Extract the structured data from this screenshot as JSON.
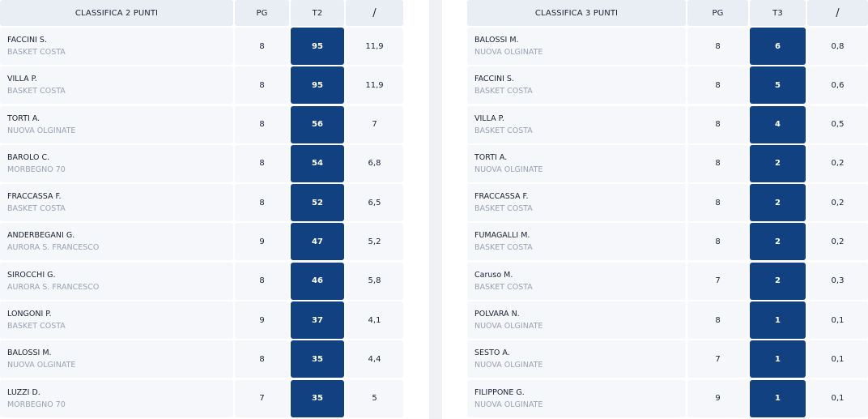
{
  "left": {
    "headers": {
      "title": "CLASSIFICA 2 PUNTI",
      "pg": "PG",
      "stat": "T2",
      "avg": "/"
    },
    "rows": [
      {
        "name": "FACCINI S.",
        "team": "BASKET COSTA",
        "pg": "8",
        "stat": "95",
        "avg": "11,9"
      },
      {
        "name": "VILLA P.",
        "team": "BASKET COSTA",
        "pg": "8",
        "stat": "95",
        "avg": "11,9"
      },
      {
        "name": "TORTI A.",
        "team": "NUOVA OLGINATE",
        "pg": "8",
        "stat": "56",
        "avg": "7"
      },
      {
        "name": "BAROLO C.",
        "team": "MORBEGNO 70",
        "pg": "8",
        "stat": "54",
        "avg": "6,8"
      },
      {
        "name": "FRACCASSA F.",
        "team": "BASKET COSTA",
        "pg": "8",
        "stat": "52",
        "avg": "6,5"
      },
      {
        "name": "ANDERBEGANI G.",
        "team": "AURORA S. FRANCESCO",
        "pg": "9",
        "stat": "47",
        "avg": "5,2"
      },
      {
        "name": "SIROCCHI G.",
        "team": "AURORA S. FRANCESCO",
        "pg": "8",
        "stat": "46",
        "avg": "5,8"
      },
      {
        "name": "LONGONI P.",
        "team": "BASKET COSTA",
        "pg": "9",
        "stat": "37",
        "avg": "4,1"
      },
      {
        "name": "BALOSSI M.",
        "team": "NUOVA OLGINATE",
        "pg": "8",
        "stat": "35",
        "avg": "4,4"
      },
      {
        "name": "LUZZI D.",
        "team": "MORBEGNO 70",
        "pg": "7",
        "stat": "35",
        "avg": "5"
      }
    ]
  },
  "right": {
    "headers": {
      "title": "CLASSIFICA 3 PUNTI",
      "pg": "PG",
      "stat": "T3",
      "avg": "/"
    },
    "rows": [
      {
        "name": "BALOSSI M.",
        "team": "NUOVA OLGINATE",
        "pg": "8",
        "stat": "6",
        "avg": "0,8"
      },
      {
        "name": "FACCINI S.",
        "team": "BASKET COSTA",
        "pg": "8",
        "stat": "5",
        "avg": "0,6"
      },
      {
        "name": "VILLA P.",
        "team": "BASKET COSTA",
        "pg": "8",
        "stat": "4",
        "avg": "0,5"
      },
      {
        "name": "TORTI A.",
        "team": "NUOVA OLGINATE",
        "pg": "8",
        "stat": "2",
        "avg": "0,2"
      },
      {
        "name": "FRACCASSA F.",
        "team": "BASKET COSTA",
        "pg": "8",
        "stat": "2",
        "avg": "0,2"
      },
      {
        "name": "FUMAGALLI M.",
        "team": "BASKET COSTA",
        "pg": "8",
        "stat": "2",
        "avg": "0,2"
      },
      {
        "name": "Caruso M.",
        "team": "BASKET COSTA",
        "pg": "7",
        "stat": "2",
        "avg": "0,3"
      },
      {
        "name": "POLVARA N.",
        "team": "NUOVA OLGINATE",
        "pg": "8",
        "stat": "1",
        "avg": "0,1"
      },
      {
        "name": "SESTO A.",
        "team": "NUOVA OLGINATE",
        "pg": "7",
        "stat": "1",
        "avg": "0,1"
      },
      {
        "name": "FILIPPONE G.",
        "team": "NUOVA OLGINATE",
        "pg": "9",
        "stat": "1",
        "avg": "0,1"
      }
    ]
  },
  "colors": {
    "highlight": "#124181",
    "header_bg": "#e9edf4",
    "row_bg": "#f5f7fb",
    "team_text": "#9aa3b4"
  }
}
